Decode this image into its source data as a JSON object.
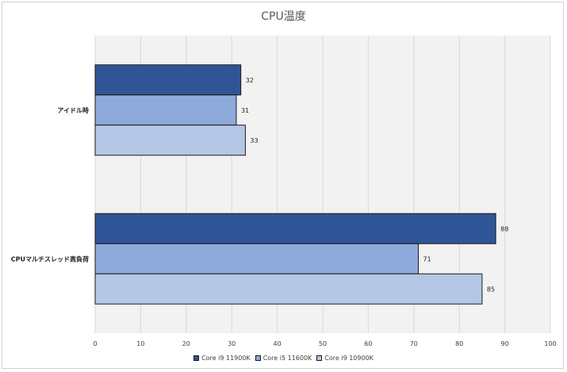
{
  "chart_data": {
    "type": "bar",
    "orientation": "horizontal",
    "title": "CPU温度",
    "categories": [
      "アイドル時",
      "CPUマルチスレッド高負荷"
    ],
    "series": [
      {
        "name": "Core i9 11900K",
        "values": [
          32,
          88
        ],
        "color": "#2f5597"
      },
      {
        "name": "Core i5 11600K",
        "values": [
          31,
          71
        ],
        "color": "#8eaadb"
      },
      {
        "name": "Core i9 10900K",
        "values": [
          33,
          85
        ],
        "color": "#b4c7e7"
      }
    ],
    "xlim": [
      0,
      100
    ],
    "x_ticks": [
      "0",
      "10",
      "20",
      "30",
      "40",
      "50",
      "60",
      "70",
      "80",
      "90",
      "100"
    ],
    "grid": true,
    "legend_position": "bottom",
    "data_labels": true
  }
}
